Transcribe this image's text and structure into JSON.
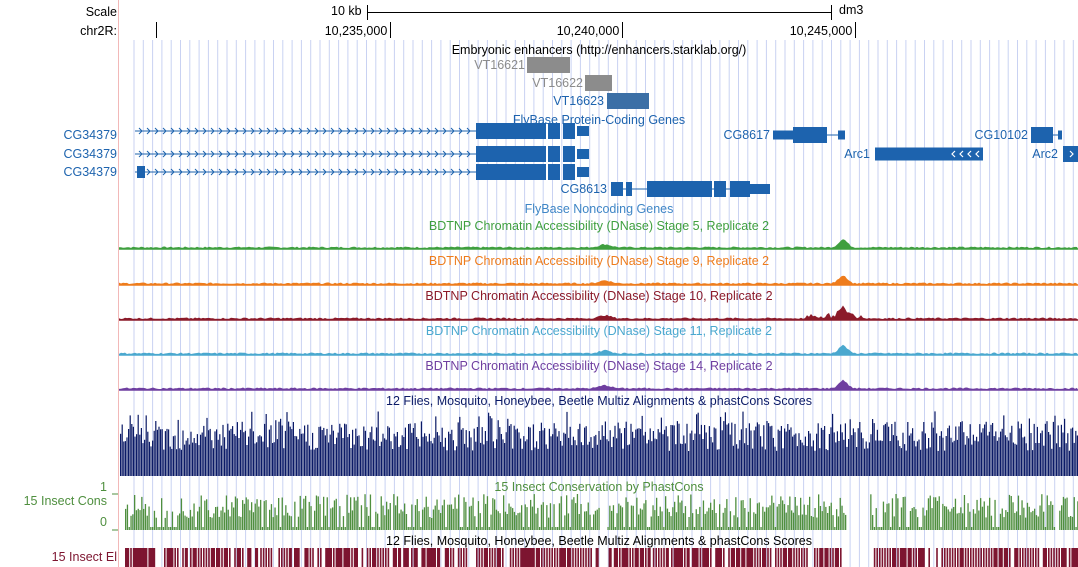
{
  "scale": {
    "label": "Scale",
    "bar_label": "10 kb",
    "assembly": "dm3"
  },
  "chrom": {
    "label": "chr2R:",
    "ticks": [
      "10,235,000",
      "10,240,000",
      "10,245,000"
    ]
  },
  "tracks": {
    "enhancers": {
      "title": "Embryonic enhancers (http://enhancers.starklab.org/)",
      "items": [
        "VT16621",
        "VT16622",
        "VT16623"
      ]
    },
    "genes": {
      "title": "FlyBase Protein-Coding Genes",
      "items": [
        "CG34379",
        "CG34379",
        "CG34379",
        "CG8617",
        "CG10102",
        "Arc1",
        "Arc2",
        "CG8613"
      ]
    },
    "noncoding": {
      "title": "FlyBase Noncoding Genes"
    },
    "dnase": [
      {
        "title": "BDTNP Chromatin Accessibility (DNase) Stage 5, Replicate 2",
        "color": "#3f9f3f"
      },
      {
        "title": "BDTNP Chromatin Accessibility (DNase) Stage 9, Replicate 2",
        "color": "#ee7c1c"
      },
      {
        "title": "BDTNP Chromatin Accessibility (DNase) Stage 10, Replicate 2",
        "color": "#8b1a2a"
      },
      {
        "title": "BDTNP Chromatin Accessibility (DNase) Stage 11, Replicate 2",
        "color": "#4aa8cf"
      },
      {
        "title": "BDTNP Chromatin Accessibility (DNase) Stage 14, Replicate 2",
        "color": "#6f3fa0"
      }
    ],
    "multiz": {
      "title": "12 Flies, Mosquito, Honeybee, Beetle Multiz Alignments & phastCons Scores",
      "color": "#0b1a66"
    },
    "cons": {
      "title": "15 Insect Conservation by PhastCons",
      "side_label": "15 Insect Cons",
      "y_max": "1",
      "y_min": "0",
      "color": "#4f8f3f"
    },
    "elements": {
      "title": "12 Flies, Mosquito, Honeybee, Beetle Multiz Alignments & phastCons Scores",
      "side_label": "15 Insect El",
      "color": "#7d1530"
    }
  },
  "colors": {
    "gene": "#1d63ae",
    "enhancer_gray": "#8c8c8c",
    "enhancer_blue": "#3b6fa6",
    "grid": "#c9d2f2",
    "side_edge": "#f2b8b8"
  }
}
